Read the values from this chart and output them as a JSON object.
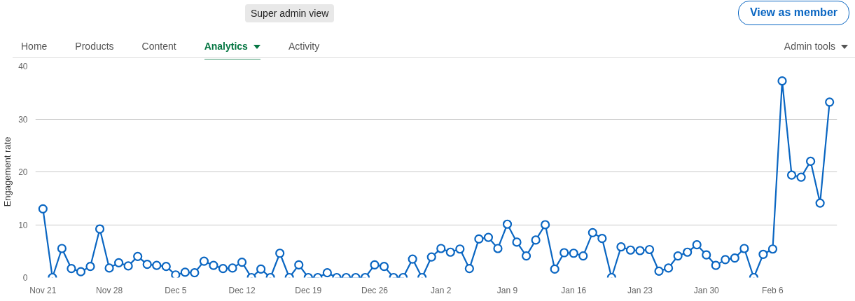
{
  "chart_data": {
    "type": "line",
    "ylabel": "Engagement rate",
    "annotations": [
      "Super admin view",
      "View as member",
      "Home",
      "Products",
      "Content",
      "Analytics",
      "Activity",
      "Admin tools"
    ],
    "categories": [
      "Nov 21",
      null,
      null,
      null,
      null,
      null,
      null,
      "Nov 28",
      null,
      null,
      null,
      null,
      null,
      null,
      "Dec 5",
      null,
      null,
      null,
      null,
      null,
      null,
      "Dec 12",
      null,
      null,
      null,
      null,
      null,
      null,
      "Dec 19",
      null,
      null,
      null,
      null,
      null,
      null,
      "Dec 26",
      null,
      null,
      null,
      null,
      null,
      null,
      "Jan 2",
      null,
      null,
      null,
      null,
      null,
      null,
      "Jan 9",
      null,
      null,
      null,
      null,
      null,
      null,
      "Jan 16",
      null,
      null,
      null,
      null,
      null,
      null,
      "Jan 23",
      null,
      null,
      null,
      null,
      null,
      null,
      "Jan 30",
      null,
      null,
      null,
      null,
      null,
      null,
      "Feb 6",
      null,
      null,
      null,
      null,
      null,
      null
    ],
    "series": [
      {
        "color": "#0a66c2",
        "values": [
          13,
          0,
          5.5,
          1.7,
          1.1,
          2.1,
          9.2,
          1.8,
          2.8,
          2.2,
          4.0,
          2.5,
          2.3,
          2.1,
          0.5,
          1.0,
          0.9,
          3.1,
          2.3,
          1.7,
          1.8,
          2.9,
          0,
          1.6,
          0,
          4.6,
          0,
          2.4,
          0,
          0,
          0.9,
          0,
          0,
          0,
          0,
          2.4,
          2.1,
          0,
          0,
          3.5,
          0,
          3.9,
          5.5,
          4.8,
          5.4,
          1.7,
          7.3,
          7.6,
          5.5,
          10.1,
          6.7,
          4.1,
          7.1,
          10.0,
          1.6,
          4.7,
          4.6,
          4.1,
          8.5,
          7.4,
          0,
          5.8,
          5.2,
          5.1,
          5.3,
          1.2,
          1.8,
          4.1,
          4.8,
          6.2,
          4.3,
          2.3,
          3.4,
          3.7,
          5.5,
          0,
          4.4,
          5.4,
          37.2,
          19.4,
          19.0,
          22.0,
          14.1,
          33.2
        ]
      }
    ],
    "ylim": [
      0,
      40
    ],
    "yticks": [
      0,
      10,
      20,
      30,
      40
    ],
    "grid": "y",
    "marker": "circle",
    "line_style": "solid"
  }
}
